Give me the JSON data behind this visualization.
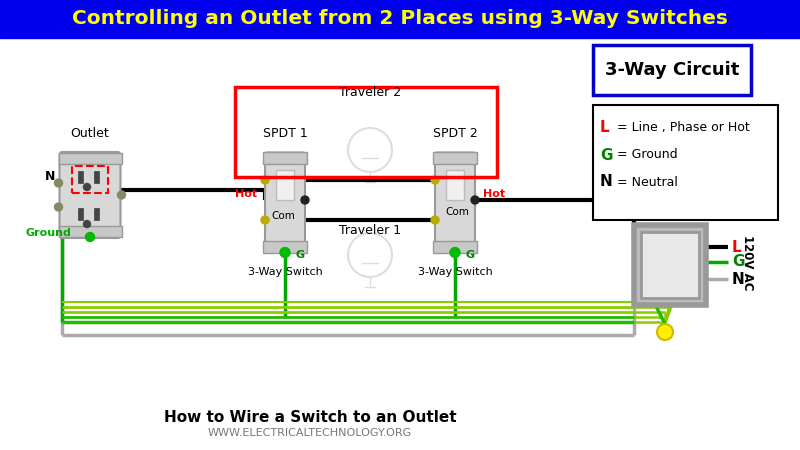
{
  "title": "Controlling an Outlet from 2 Places using 3-Way Switches",
  "title_bg": "#0000EE",
  "title_color": "#FFFF00",
  "subtitle": "How to Wire a Switch to an Outlet",
  "website": "WWW.ELECTRICALTECHNOLOGY.ORG",
  "bg_color": "#FFFFFF",
  "circuit_label": "3-Way Circuit",
  "outlet_label": "Outlet",
  "switch1_label": "3-Way Switch",
  "switch2_label": "3-Way Switch",
  "spdt1_label": "SPDT 1",
  "spdt2_label": "SPDT 2",
  "traveler1_label": "Traveler 1",
  "traveler2_label": "Traveler 2",
  "hot_label": "Hot",
  "com1_label": "Com",
  "com2_label": "Com",
  "ground_label": "Ground",
  "N_label": "N",
  "G_label": "G",
  "L_label": "L",
  "label_120v": "120V AC",
  "legend_L_text": " = Line , Phase or Hot",
  "legend_G_text": " = Ground",
  "legend_N_text": " = Neutral"
}
